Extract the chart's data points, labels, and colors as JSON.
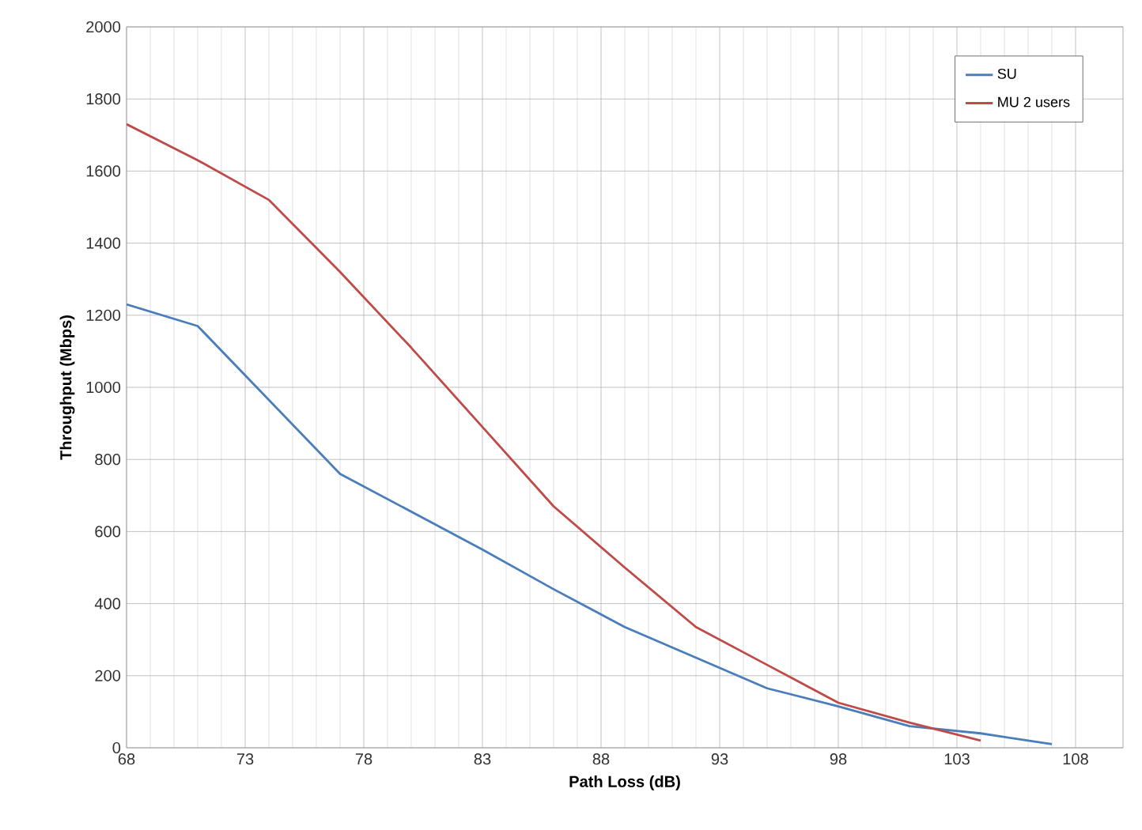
{
  "chart_data": {
    "type": "line",
    "xlabel": "Path Loss (dB)",
    "ylabel": "Throughput (Mbps)",
    "xlim": [
      68,
      110
    ],
    "xticks": [
      68,
      73,
      78,
      83,
      88,
      93,
      98,
      103,
      108
    ],
    "ylim": [
      0,
      2000
    ],
    "yticks": [
      0,
      200,
      400,
      600,
      800,
      1000,
      1200,
      1400,
      1600,
      1800,
      2000
    ],
    "grid": true,
    "legend": "top right",
    "marker": "none",
    "line_style": "solid",
    "series": [
      {
        "name": "SU",
        "color": "#4a7ebb",
        "x": [
          68,
          71,
          77,
          83,
          86,
          89,
          92,
          95,
          98,
          101,
          104,
          107
        ],
        "values": [
          1230,
          1170,
          760,
          550,
          440,
          335,
          250,
          165,
          115,
          60,
          40,
          10
        ]
      },
      {
        "name": "MU 2 users",
        "color": "#be4b48",
        "x": [
          68,
          71,
          74,
          77,
          80,
          83,
          86,
          89,
          92,
          95,
          98,
          101,
          104
        ],
        "values": [
          1730,
          1630,
          1520,
          1320,
          1110,
          890,
          670,
          500,
          335,
          230,
          125,
          70,
          20
        ]
      }
    ]
  }
}
